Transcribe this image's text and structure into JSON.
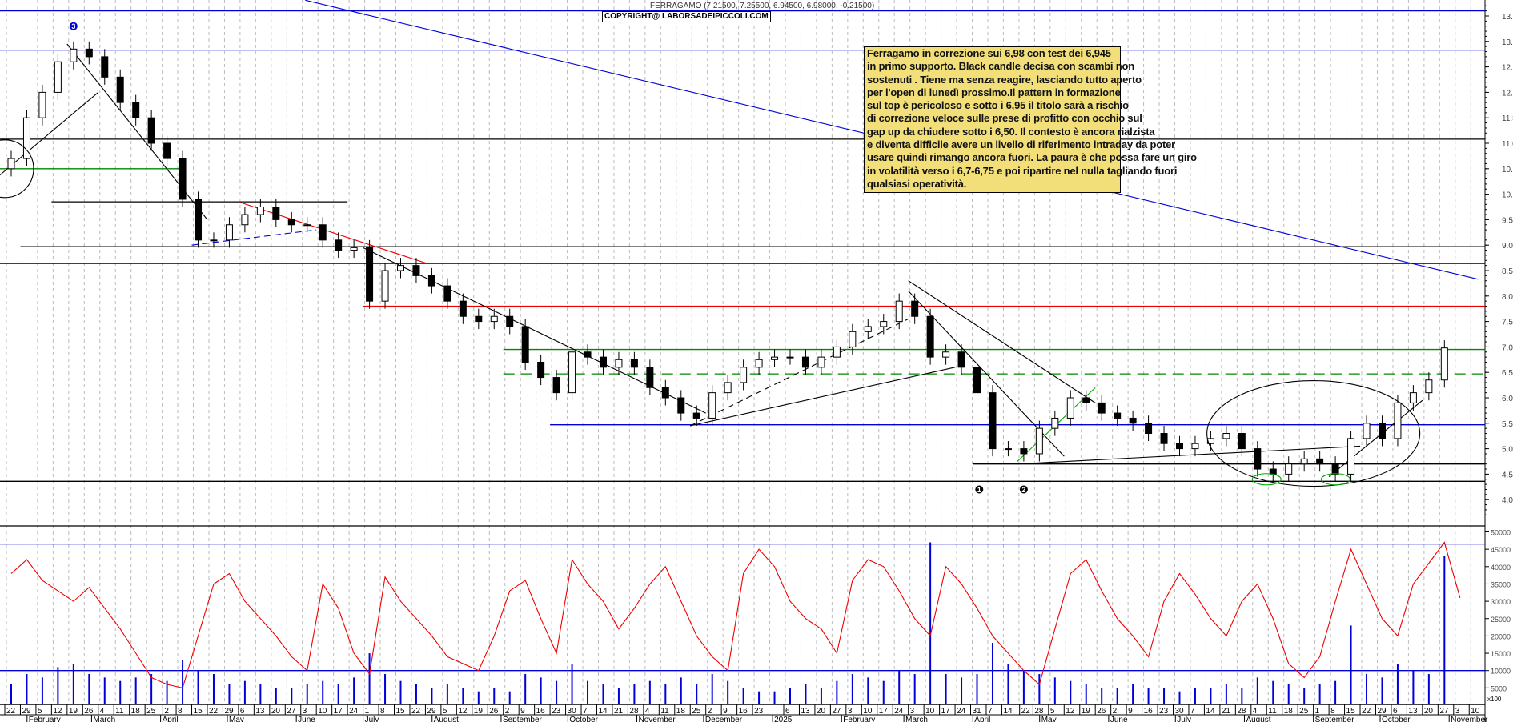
{
  "chart_data": {
    "type": "candlestick",
    "title": "FERRAGAMO (7.21500, 7.25500, 6.94500, 6.98000, -0.21500)",
    "copyright": "COPYRIGHT@ LABORSADEIPICCOLI.COM",
    "x_range": [
      "2024-01-22",
      "2025-11-14"
    ],
    "price_axis": {
      "ylim": [
        3.6,
        13.7
      ],
      "ticks": [
        "13.5",
        "13.0",
        "12.5",
        "12.0",
        "11.5",
        "11.0",
        "10.5",
        "10.0",
        "9.5",
        "9.0",
        "8.5",
        "8.0",
        "7.5",
        "7.0",
        "6.5",
        "6.0",
        "5.5",
        "5.0",
        "4.5",
        "4.0"
      ]
    },
    "volume_axis": {
      "ylim": [
        0,
        52000
      ],
      "ticks": [
        "50000",
        "45000",
        "40000",
        "35000",
        "30000",
        "25000",
        "20000",
        "15000",
        "10000",
        "5000"
      ],
      "unit": "x100"
    },
    "weekly_close": [
      [
        "2024-01-22",
        10.7
      ],
      [
        "2024-01-29",
        11.5
      ],
      [
        "2024-02-05",
        12.0
      ],
      [
        "2024-02-12",
        12.6
      ],
      [
        "2024-02-19",
        12.85
      ],
      [
        "2024-02-26",
        12.7
      ],
      [
        "2024-03-04",
        12.3
      ],
      [
        "2024-03-11",
        11.8
      ],
      [
        "2024-03-18",
        11.5
      ],
      [
        "2024-03-25",
        11.0
      ],
      [
        "2024-04-01",
        10.7
      ],
      [
        "2024-04-08",
        9.9
      ],
      [
        "2024-04-15",
        9.1
      ],
      [
        "2024-04-22",
        9.1
      ],
      [
        "2024-04-29",
        9.4
      ],
      [
        "2024-05-06",
        9.6
      ],
      [
        "2024-05-13",
        9.75
      ],
      [
        "2024-05-20",
        9.5
      ],
      [
        "2024-05-27",
        9.4
      ],
      [
        "2024-06-03",
        9.4
      ],
      [
        "2024-06-10",
        9.1
      ],
      [
        "2024-06-17",
        8.9
      ],
      [
        "2024-06-24",
        8.95
      ],
      [
        "2024-07-01",
        7.9
      ],
      [
        "2024-07-08",
        8.5
      ],
      [
        "2024-07-15",
        8.6
      ],
      [
        "2024-07-22",
        8.4
      ],
      [
        "2024-07-29",
        8.2
      ],
      [
        "2024-08-05",
        7.9
      ],
      [
        "2024-08-12",
        7.6
      ],
      [
        "2024-08-19",
        7.5
      ],
      [
        "2024-08-26",
        7.6
      ],
      [
        "2024-09-02",
        7.4
      ],
      [
        "2024-09-09",
        6.7
      ],
      [
        "2024-09-16",
        6.4
      ],
      [
        "2024-09-23",
        6.1
      ],
      [
        "2024-09-30",
        6.9
      ],
      [
        "2024-10-07",
        6.8
      ],
      [
        "2024-10-14",
        6.6
      ],
      [
        "2024-10-21",
        6.75
      ],
      [
        "2024-10-28",
        6.6
      ],
      [
        "2024-11-04",
        6.2
      ],
      [
        "2024-11-11",
        6.0
      ],
      [
        "2024-11-18",
        5.7
      ],
      [
        "2024-11-25",
        5.6
      ],
      [
        "2024-12-02",
        6.1
      ],
      [
        "2024-12-09",
        6.3
      ],
      [
        "2024-12-16",
        6.6
      ],
      [
        "2024-12-23",
        6.75
      ],
      [
        "2024-12-30",
        6.8
      ],
      [
        "2025-01-06",
        6.8
      ],
      [
        "2025-01-13",
        6.6
      ],
      [
        "2025-01-20",
        6.8
      ],
      [
        "2025-01-27",
        7.0
      ],
      [
        "2025-02-03",
        7.3
      ],
      [
        "2025-02-10",
        7.4
      ],
      [
        "2025-02-17",
        7.5
      ],
      [
        "2025-02-24",
        7.9
      ],
      [
        "2025-03-03",
        7.6
      ],
      [
        "2025-03-10",
        6.8
      ],
      [
        "2025-03-17",
        6.9
      ],
      [
        "2025-03-24",
        6.6
      ],
      [
        "2025-03-31",
        6.1
      ],
      [
        "2025-04-07",
        5.0
      ],
      [
        "2025-04-14",
        5.0
      ],
      [
        "2025-04-21",
        4.9
      ],
      [
        "2025-04-28",
        5.4
      ],
      [
        "2025-05-05",
        5.6
      ],
      [
        "2025-05-12",
        6.0
      ],
      [
        "2025-05-19",
        5.9
      ],
      [
        "2025-05-26",
        5.7
      ],
      [
        "2025-06-02",
        5.6
      ],
      [
        "2025-06-09",
        5.5
      ],
      [
        "2025-06-16",
        5.3
      ],
      [
        "2025-06-23",
        5.1
      ],
      [
        "2025-06-30",
        5.0
      ],
      [
        "2025-07-07",
        5.1
      ],
      [
        "2025-07-14",
        5.2
      ],
      [
        "2025-07-21",
        5.3
      ],
      [
        "2025-07-28",
        5.0
      ],
      [
        "2025-08-04",
        4.6
      ],
      [
        "2025-08-11",
        4.5
      ],
      [
        "2025-08-18",
        4.7
      ],
      [
        "2025-08-25",
        4.8
      ],
      [
        "2025-09-01",
        4.7
      ],
      [
        "2025-09-08",
        4.5
      ],
      [
        "2025-09-15",
        5.2
      ],
      [
        "2025-09-22",
        5.5
      ],
      [
        "2025-09-29",
        5.2
      ],
      [
        "2025-10-06",
        5.9
      ],
      [
        "2025-10-13",
        6.1
      ],
      [
        "2025-10-20",
        6.35
      ],
      [
        "2025-10-27",
        6.98
      ]
    ],
    "weekly_volume": [
      6000,
      9000,
      8000,
      11000,
      12000,
      9000,
      8000,
      7000,
      8000,
      9000,
      7000,
      13000,
      10000,
      9000,
      6000,
      7000,
      6000,
      5000,
      5000,
      6000,
      7000,
      6000,
      8000,
      15000,
      9000,
      7000,
      6000,
      5000,
      6000,
      5000,
      4000,
      5000,
      4000,
      9000,
      8000,
      7000,
      12000,
      7000,
      6000,
      5000,
      6000,
      7000,
      6000,
      8000,
      6000,
      9000,
      7000,
      5000,
      4000,
      4000,
      5000,
      6000,
      5000,
      7000,
      9000,
      8000,
      7000,
      10000,
      9000,
      47000,
      9000,
      8000,
      9000,
      18000,
      12000,
      10000,
      9000,
      8000,
      7000,
      6000,
      5000,
      5000,
      6000,
      5000,
      5000,
      4000,
      5000,
      5000,
      6000,
      5000,
      8000,
      7000,
      6000,
      5000,
      6000,
      7000,
      23000,
      9000,
      8000,
      12000,
      10000,
      9000,
      43000
    ],
    "oscillator": [
      38000,
      42000,
      36000,
      33000,
      30000,
      34000,
      28000,
      22000,
      15000,
      8000,
      6000,
      5000,
      20000,
      35000,
      38000,
      30000,
      25000,
      20000,
      14000,
      10000,
      35000,
      28000,
      15000,
      9000,
      37000,
      30000,
      25000,
      20000,
      14000,
      12000,
      10000,
      20000,
      33000,
      36000,
      25000,
      15000,
      42000,
      35000,
      30000,
      22000,
      28000,
      35000,
      40000,
      30000,
      20000,
      14000,
      10000,
      38000,
      45000,
      40000,
      30000,
      25000,
      22000,
      15000,
      36000,
      42000,
      40000,
      33000,
      25000,
      20000,
      40000,
      35000,
      28000,
      20000,
      15000,
      10000,
      6000,
      22000,
      38000,
      42000,
      33000,
      25000,
      20000,
      14000,
      30000,
      38000,
      32000,
      25000,
      20000,
      30000,
      35000,
      25000,
      12000,
      8000,
      14000,
      30000,
      45000,
      35000,
      25000,
      20000,
      35000,
      41000,
      47000,
      31000
    ],
    "horizontal_levels": [
      {
        "price": 13.6,
        "color": "#0000dd"
      },
      {
        "price": 12.83,
        "color": "#0000dd"
      },
      {
        "price": 11.08,
        "color": "#000000"
      },
      {
        "price": 8.97,
        "color": "#000000",
        "from": "2024-01-29"
      },
      {
        "price": 8.64,
        "color": "#000000"
      },
      {
        "price": 7.8,
        "color": "#ee0000",
        "from": "2024-07-01"
      },
      {
        "price": 6.95,
        "color": "#008800",
        "from": "2024-09-02"
      },
      {
        "price": 6.47,
        "color": "#008800",
        "from": "2024-09-02",
        "dashed": true
      },
      {
        "price": 5.47,
        "color": "#0000dd",
        "from": "2024-09-23"
      },
      {
        "price": 4.7,
        "color": "#000000",
        "from": "2025-04-01"
      },
      {
        "price": 4.36,
        "color": "#000000"
      },
      {
        "price": 10.5,
        "color": "#008800",
        "to": "2024-04-10"
      },
      {
        "price": 9.85,
        "color": "#000000",
        "from": "2024-02-12",
        "to": "2024-06-24"
      }
    ],
    "volume_levels": [
      {
        "value": 46500,
        "color": "#0000dd"
      },
      {
        "value": 10000,
        "color": "#0000dd"
      }
    ],
    "trendlines": [
      {
        "from": [
          "2024-06-05",
          13.81
        ],
        "to": [
          "2025-11-14",
          8.33
        ],
        "color": "#0000dd"
      },
      {
        "from": [
          "2024-02-19",
          12.95
        ],
        "to": [
          "2024-04-22",
          9.5
        ],
        "color": "#000000"
      },
      {
        "from": [
          "2024-05-06",
          9.85
        ],
        "to": [
          "2024-07-29",
          8.65
        ],
        "color": "#ee0000"
      },
      {
        "from": [
          "2024-07-01",
          8.95
        ],
        "to": [
          "2024-12-02",
          5.7
        ],
        "color": "#000000"
      },
      {
        "from": [
          "2024-11-25",
          5.45
        ],
        "to": [
          "2025-03-03",
          7.55
        ],
        "color": "#000000",
        "dashed": true
      },
      {
        "from": [
          "2024-11-25",
          5.45
        ],
        "to": [
          "2025-03-24",
          6.6
        ],
        "color": "#000000"
      },
      {
        "from": [
          "2025-03-03",
          8.3
        ],
        "to": [
          "2025-05-26",
          5.9
        ],
        "color": "#000000"
      },
      {
        "from": [
          "2025-03-03",
          8.1
        ],
        "to": [
          "2025-05-12",
          4.85
        ],
        "color": "#000000"
      },
      {
        "from": [
          "2025-04-21",
          4.7
        ],
        "to": [
          "2025-09-22",
          5.05
        ],
        "color": "#000000"
      },
      {
        "from": [
          "2025-04-21",
          4.75
        ],
        "to": [
          "2025-05-26",
          6.2
        ],
        "color": "#00aa00"
      },
      {
        "from": [
          "2025-09-08",
          4.45
        ],
        "to": [
          "2025-10-20",
          5.95
        ],
        "color": "#000000"
      },
      {
        "from": [
          "2024-01-15",
          10.2
        ],
        "to": [
          "2024-03-04",
          12.0
        ],
        "color": "#000000"
      },
      {
        "from": [
          "2024-04-15",
          9.0
        ],
        "to": [
          "2024-06-10",
          9.3
        ],
        "color": "#0000dd",
        "dashed": true
      }
    ],
    "markers": [
      {
        "label": "3",
        "date": "2024-02-19",
        "price": 13.3,
        "color": "#0000dd"
      },
      {
        "label": "1",
        "date": "2025-04-01",
        "price": 4.2,
        "color": "#000000"
      },
      {
        "label": "2",
        "date": "2025-04-21",
        "price": 4.2,
        "color": "#000000"
      }
    ],
    "ellipses": [
      {
        "date": "2024-01-22",
        "price": 10.5,
        "color": "#000000",
        "rx": 36,
        "ry": 36
      },
      {
        "date": "2025-09-01",
        "price": 5.3,
        "color": "#000000",
        "rx": 133,
        "ry": 66
      },
      {
        "date": "2025-08-11",
        "price": 4.4,
        "color": "#00aa00",
        "rx": 18,
        "ry": 7
      },
      {
        "date": "2025-09-11",
        "price": 4.4,
        "color": "#00aa00",
        "rx": 18,
        "ry": 7
      }
    ],
    "x_ticks": [
      "2024-01-22",
      "2024-01-29",
      "2024-02-05",
      "2024-02-12",
      "2024-02-19",
      "2024-02-26",
      "2024-03-04",
      "2024-03-11",
      "2024-03-18",
      "2024-03-25",
      "2024-04-02",
      "2024-04-08",
      "2024-04-15",
      "2024-04-22",
      "2024-04-29",
      "2024-05-06",
      "2024-05-13",
      "2024-05-20",
      "2024-05-27",
      "2024-06-03",
      "2024-06-10",
      "2024-06-17",
      "2024-06-24",
      "2024-07-01",
      "2024-07-08",
      "2024-07-15",
      "2024-07-22",
      "2024-07-29",
      "2024-08-05",
      "2024-08-12",
      "2024-08-19",
      "2024-08-26",
      "2024-09-02",
      "2024-09-09",
      "2024-09-16",
      "2024-09-23",
      "2024-09-30",
      "2024-10-07",
      "2024-10-14",
      "2024-10-21",
      "2024-10-28",
      "2024-11-04",
      "2024-11-11",
      "2024-11-18",
      "2024-11-25",
      "2024-12-02",
      "2024-12-09",
      "2024-12-16",
      "2024-12-23",
      "2025-01-06",
      "2025-01-13",
      "2025-01-20",
      "2025-01-27",
      "2025-02-03",
      "2025-02-10",
      "2025-02-17",
      "2025-02-24",
      "2025-03-03",
      "2025-03-10",
      "2025-03-17",
      "2025-03-24",
      "2025-03-31",
      "2025-04-07",
      "2025-04-14",
      "2025-04-22",
      "2025-04-28",
      "2025-05-05",
      "2025-05-12",
      "2025-05-19",
      "2025-05-26",
      "2025-06-02",
      "2025-06-09",
      "2025-06-16",
      "2025-06-23",
      "2025-06-30",
      "2025-07-07",
      "2025-07-14",
      "2025-07-21",
      "2025-07-28",
      "2025-08-04",
      "2025-08-11",
      "2025-08-18",
      "2025-08-25",
      "2025-09-01",
      "2025-09-08",
      "2025-09-15",
      "2025-09-22",
      "2025-09-29",
      "2025-10-06",
      "2025-10-13",
      "2025-10-20",
      "2025-10-27",
      "2025-11-03",
      "2025-11-10"
    ],
    "months": [
      [
        "2024-02-01",
        "February"
      ],
      [
        "2024-03-01",
        "March"
      ],
      [
        "2024-04-01",
        "April"
      ],
      [
        "2024-05-01",
        "May"
      ],
      [
        "2024-06-01",
        "June"
      ],
      [
        "2024-07-01",
        "July"
      ],
      [
        "2024-08-01",
        "August"
      ],
      [
        "2024-09-01",
        "September"
      ],
      [
        "2024-10-01",
        "October"
      ],
      [
        "2024-11-01",
        "November"
      ],
      [
        "2024-12-01",
        "December"
      ],
      [
        "2025-01-01",
        "2025"
      ],
      [
        "2025-02-01",
        "February"
      ],
      [
        "2025-03-01",
        "March"
      ],
      [
        "2025-04-01",
        "April"
      ],
      [
        "2025-05-01",
        "May"
      ],
      [
        "2025-06-01",
        "June"
      ],
      [
        "2025-07-01",
        "July"
      ],
      [
        "2025-08-01",
        "August"
      ],
      [
        "2025-09-01",
        "September"
      ],
      [
        "2025-10-01",
        "October"
      ],
      [
        "2025-11-01",
        "November"
      ]
    ],
    "colors": {
      "candle": "#000000",
      "volume": "#0000dd",
      "oscillator": "#ee0000",
      "grid": "#bbbbbb",
      "note_bg": "#f2df7a"
    }
  },
  "note": {
    "lines": [
      "Ferragamo in correzione sui 6,98 con test  dei 6,945",
      "in primo supporto. Black candle decisa con scambi non",
      "sostenuti . Tiene ma senza reagire, lasciando tutto aperto",
      "per l'open di lunedì prossimo.Il pattern in formazione",
      "sul top è pericoloso e sotto i 6,95 il titolo sarà a rischio",
      "di correzione veloce sulle prese di profitto con occhio sul",
      "gap up da chiudere sotto i 6,50. Il contesto è ancora rialzista",
      "e diventa difficile avere un livello di riferimento intraday da poter",
      "usare quindi rimango ancora fuori. La paura è che possa fare un giro",
      "in volatilità verso i 6,7-6,75 e poi ripartire nel nulla tagliando fuori",
      "qualsiasi operatività."
    ]
  }
}
